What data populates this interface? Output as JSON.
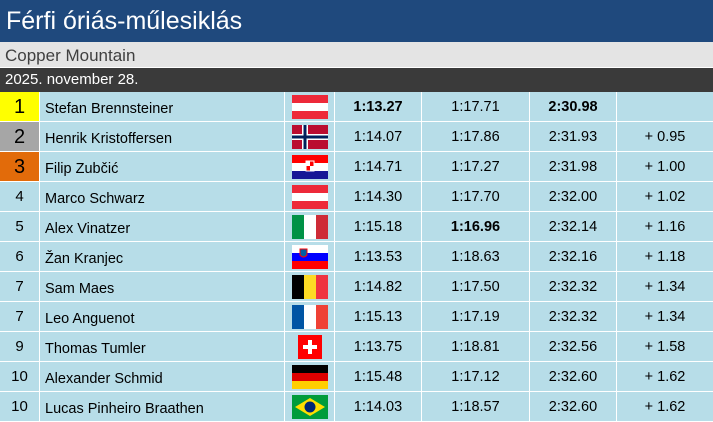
{
  "header": {
    "title": "Férfi óriás-műlesiklás",
    "subtitle": "Copper Mountain",
    "date": "2025. november 28."
  },
  "table": {
    "rows": [
      [
        "1",
        "Stefan Brennsteiner",
        "1:13.27",
        "1:17.71",
        "2:30.98",
        null
      ],
      [
        "2",
        "Henrik Kristoffersen",
        "1:14.07",
        "1:17.86",
        "2:31.93",
        "+ 0.95"
      ],
      [
        "3",
        "Filip Zubčić",
        "1:14.71",
        "1:17.27",
        "2:31.98",
        "+ 1.00"
      ],
      [
        "4",
        "Marco Schwarz",
        "1:14.30",
        "1:17.70",
        "2:32.00",
        "+ 1.02"
      ],
      [
        "5",
        "Alex Vinatzer",
        "1:15.18",
        "1:16.96",
        "2:32.14",
        "+ 1.16"
      ],
      [
        "6",
        "Žan Kranjec",
        "1:13.53",
        "1:18.63",
        "2:32.16",
        "+ 1.18"
      ],
      [
        "7",
        "Sam Maes",
        "1:14.82",
        "1:17.50",
        "2:32.32",
        "+ 1.34"
      ],
      [
        "7",
        "Leo Anguenot",
        "1:15.13",
        "1:17.19",
        "2:32.32",
        "+ 1.34"
      ],
      [
        "9",
        "Thomas Tumler",
        "1:13.75",
        "1:18.81",
        "2:32.56",
        "+ 1.58"
      ],
      [
        "10",
        "Alexander Schmid",
        "1:15.48",
        "1:17.12",
        "2:32.60",
        "+ 1.62"
      ],
      [
        "10",
        "Lucas Pinheiro Braathen",
        "1:14.03",
        "1:18.57",
        "2:32.60",
        "+ 1.62"
      ]
    ]
  }
}
